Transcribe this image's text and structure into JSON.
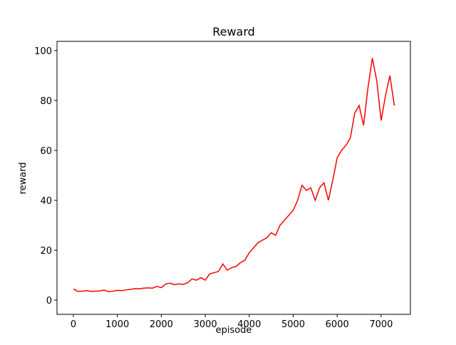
{
  "chart_data": {
    "type": "line",
    "title": "Reward",
    "x_label": "episode",
    "y_label": "reward",
    "x": [
      0,
      100,
      200,
      300,
      400,
      500,
      600,
      700,
      800,
      900,
      1000,
      1100,
      1200,
      1300,
      1400,
      1500,
      1600,
      1700,
      1800,
      1900,
      2000,
      2100,
      2200,
      2300,
      2400,
      2500,
      2600,
      2700,
      2800,
      2900,
      3000,
      3100,
      3200,
      3300,
      3400,
      3500,
      3600,
      3700,
      3800,
      3900,
      4000,
      4100,
      4200,
      4300,
      4400,
      4500,
      4600,
      4700,
      4800,
      4900,
      5000,
      5100,
      5200,
      5300,
      5400,
      5500,
      5600,
      5700,
      5800,
      5900,
      6000,
      6100,
      6200,
      6300,
      6400,
      6500,
      6600,
      6700,
      6800,
      6900,
      7000,
      7100,
      7200,
      7300
    ],
    "series": [
      {
        "name": "reward",
        "color": "#ff0000",
        "values": [
          4.5,
          3.5,
          3.6,
          3.8,
          3.5,
          3.6,
          3.7,
          4,
          3.4,
          3.6,
          3.9,
          3.8,
          4.1,
          4.3,
          4.6,
          4.5,
          4.8,
          4.9,
          4.8,
          5.5,
          5,
          6.5,
          6.8,
          6.2,
          6.5,
          6.3,
          7,
          8.5,
          8,
          9,
          8,
          10.5,
          11,
          11.5,
          14.5,
          12,
          13,
          13.5,
          15,
          16,
          19,
          21,
          23,
          24,
          25,
          27,
          26,
          30,
          32,
          34,
          36,
          40,
          46,
          44,
          45,
          40,
          45,
          47,
          40,
          48,
          57,
          60,
          62,
          65,
          75,
          78,
          70,
          85,
          97,
          88,
          72,
          82,
          90,
          78
        ]
      }
    ],
    "xlim": [
      -373,
      7666
    ],
    "ylim": [
      -5.7,
      103.7
    ],
    "xticks": [
      0,
      1000,
      2000,
      3000,
      4000,
      5000,
      6000,
      7000
    ],
    "yticks": [
      0,
      20,
      40,
      60,
      80,
      100
    ]
  }
}
